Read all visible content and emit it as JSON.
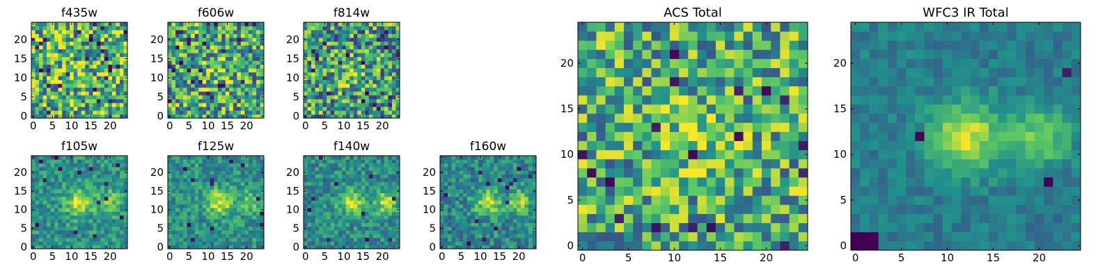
{
  "figure": {
    "colormap": "viridis",
    "colormap_stops": [
      "#440154",
      "#3b528b",
      "#21918c",
      "#5ec962",
      "#fde725"
    ],
    "background": "#ffffff"
  },
  "chart_data": [
    {
      "type": "heatmap",
      "title": "f435w",
      "grid_size": 25,
      "xlim": [
        0,
        24
      ],
      "ylim": [
        0,
        24
      ],
      "xticks": [
        "0",
        "5",
        "10",
        "15",
        "20"
      ],
      "yticks": [
        "0",
        "5",
        "10",
        "15",
        "20"
      ],
      "seed": 11,
      "noise": 0.42,
      "base": 0.64,
      "blobs": [
        {
          "x": 11,
          "y": 11,
          "amp": 0.12,
          "sigma": 2.5
        }
      ],
      "dark_cells": 26
    },
    {
      "type": "heatmap",
      "title": "f606w",
      "grid_size": 25,
      "xlim": [
        0,
        24
      ],
      "ylim": [
        0,
        24
      ],
      "xticks": [
        "0",
        "5",
        "10",
        "15",
        "20"
      ],
      "yticks": [
        "0",
        "5",
        "10",
        "15",
        "20"
      ],
      "seed": 23,
      "noise": 0.4,
      "base": 0.6,
      "blobs": [
        {
          "x": 12,
          "y": 12,
          "amp": 0.18,
          "sigma": 2.5
        }
      ],
      "dark_cells": 24
    },
    {
      "type": "heatmap",
      "title": "f814w",
      "grid_size": 25,
      "xlim": [
        0,
        24
      ],
      "ylim": [
        0,
        24
      ],
      "xticks": [
        "0",
        "5",
        "10",
        "15",
        "20"
      ],
      "yticks": [
        "0",
        "5",
        "10",
        "15",
        "20"
      ],
      "seed": 37,
      "noise": 0.4,
      "base": 0.56,
      "blobs": [
        {
          "x": 12,
          "y": 11,
          "amp": 0.26,
          "sigma": 2.3
        }
      ],
      "dark_cells": 20
    },
    {
      "type": "heatmap",
      "title": "f105w",
      "grid_size": 25,
      "xlim": [
        0,
        24
      ],
      "ylim": [
        0,
        24
      ],
      "xticks": [
        "0",
        "5",
        "10",
        "15",
        "20"
      ],
      "yticks": [
        "0",
        "5",
        "10",
        "15",
        "20"
      ],
      "seed": 41,
      "noise": 0.18,
      "base": 0.5,
      "blobs": [
        {
          "x": 12,
          "y": 12,
          "amp": 0.42,
          "sigma": 2.6
        },
        {
          "x": 20,
          "y": 12,
          "amp": 0.3,
          "sigma": 2.2
        }
      ],
      "dark_cells": 14
    },
    {
      "type": "heatmap",
      "title": "f125w",
      "grid_size": 25,
      "xlim": [
        0,
        24
      ],
      "ylim": [
        0,
        24
      ],
      "xticks": [
        "0",
        "5",
        "10",
        "15",
        "20"
      ],
      "yticks": [
        "0",
        "5",
        "10",
        "15",
        "20"
      ],
      "seed": 53,
      "noise": 0.18,
      "base": 0.5,
      "blobs": [
        {
          "x": 13,
          "y": 12,
          "amp": 0.45,
          "sigma": 2.4
        },
        {
          "x": 21,
          "y": 12,
          "amp": 0.32,
          "sigma": 2.0
        }
      ],
      "dark_cells": 12
    },
    {
      "type": "heatmap",
      "title": "f140w",
      "grid_size": 25,
      "xlim": [
        0,
        24
      ],
      "ylim": [
        0,
        24
      ],
      "xticks": [
        "0",
        "5",
        "10",
        "15",
        "20"
      ],
      "yticks": [
        "0",
        "5",
        "10",
        "15",
        "20"
      ],
      "seed": 67,
      "noise": 0.18,
      "base": 0.48,
      "blobs": [
        {
          "x": 12,
          "y": 12,
          "amp": 0.42,
          "sigma": 2.4
        },
        {
          "x": 21,
          "y": 12,
          "amp": 0.42,
          "sigma": 2.1
        }
      ],
      "dark_cells": 10
    },
    {
      "type": "heatmap",
      "title": "f160w",
      "grid_size": 25,
      "xlim": [
        0,
        24
      ],
      "ylim": [
        0,
        24
      ],
      "xticks": [
        "0",
        "5",
        "10",
        "15",
        "20"
      ],
      "yticks": [
        "0",
        "5",
        "10",
        "15",
        "20"
      ],
      "seed": 79,
      "noise": 0.2,
      "base": 0.46,
      "blobs": [
        {
          "x": 12,
          "y": 12,
          "amp": 0.45,
          "sigma": 2.4
        },
        {
          "x": 20,
          "y": 12,
          "amp": 0.36,
          "sigma": 2.2
        }
      ],
      "dark_cells": 14
    },
    {
      "type": "heatmap",
      "title": "ACS Total",
      "grid_size": 25,
      "xlim": [
        0,
        24
      ],
      "ylim": [
        0,
        24
      ],
      "xticks": [
        "0",
        "5",
        "10",
        "15",
        "20"
      ],
      "yticks": [
        "0",
        "5",
        "10",
        "15",
        "20"
      ],
      "seed": 97,
      "noise": 0.36,
      "base": 0.62,
      "blobs": [
        {
          "x": 12,
          "y": 12,
          "amp": 0.22,
          "sigma": 2.4
        }
      ],
      "dark_cells": 18
    },
    {
      "type": "heatmap",
      "title": "WFC3 IR Total",
      "grid_size": 25,
      "xlim": [
        0,
        24
      ],
      "ylim": [
        0,
        24
      ],
      "xticks": [
        "0",
        "5",
        "10",
        "15",
        "20"
      ],
      "yticks": [
        "0",
        "5",
        "10",
        "15",
        "20"
      ],
      "seed": 131,
      "noise": 0.1,
      "base": 0.42,
      "blobs": [
        {
          "x": 12,
          "y": 12,
          "amp": 0.52,
          "sigma": 2.6
        },
        {
          "x": 20,
          "y": 12,
          "amp": 0.34,
          "sigma": 2.4
        }
      ],
      "dark_cells": 3
    }
  ]
}
